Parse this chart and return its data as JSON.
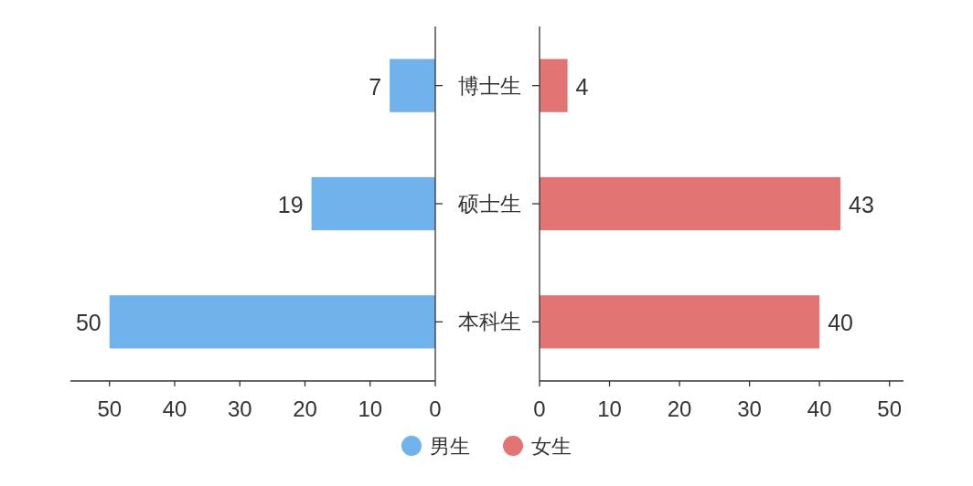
{
  "chart_data": [
    {
      "type": "bar",
      "orientation": "horizontal",
      "categories": [
        "博士生",
        "硕士生",
        "本科生"
      ],
      "series": [
        {
          "name": "男生",
          "color": "#70b2ec",
          "values": [
            7,
            19,
            50
          ]
        }
      ],
      "xlim": [
        56,
        0
      ],
      "xticks": [
        50,
        40,
        30,
        20,
        10,
        0
      ],
      "data_labels": true,
      "tick_labels": "x",
      "legend": "bottom"
    },
    {
      "type": "bar",
      "orientation": "horizontal",
      "categories": [
        "博士生",
        "硕士生",
        "本科生"
      ],
      "series": [
        {
          "name": "女生",
          "color": "#e37474",
          "values": [
            4,
            43,
            40
          ]
        }
      ],
      "xlim": [
        0,
        52
      ],
      "xticks": [
        0,
        10,
        20,
        30,
        40,
        50
      ],
      "data_labels": true,
      "legend": "bottom"
    }
  ]
}
